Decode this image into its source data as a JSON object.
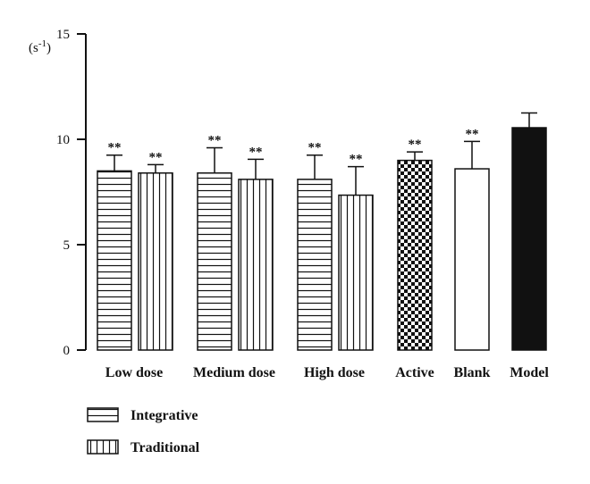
{
  "chart_data": {
    "type": "bar",
    "unit_label": "(s-1)",
    "categories": [
      "Low dose",
      "Medium dose",
      "High dose",
      "Active",
      "Blank",
      "Model"
    ],
    "yticks": [
      "0",
      "5",
      "10",
      "15"
    ],
    "ylim": [
      0,
      15
    ],
    "series": [
      {
        "name": "Integrative",
        "pattern": "horizontal-lines"
      },
      {
        "name": "Traditional",
        "pattern": "vertical-lines"
      }
    ],
    "bars": [
      {
        "category": "Low dose",
        "series": "Integrative",
        "pattern": "horizontal-lines",
        "value": 8.5,
        "error": 0.75,
        "significance": "**"
      },
      {
        "category": "Low dose",
        "series": "Traditional",
        "pattern": "vertical-lines",
        "value": 8.4,
        "error": 0.4,
        "significance": "**"
      },
      {
        "category": "Medium dose",
        "series": "Integrative",
        "pattern": "horizontal-lines",
        "value": 8.4,
        "error": 1.2,
        "significance": "**"
      },
      {
        "category": "Medium dose",
        "series": "Traditional",
        "pattern": "vertical-lines",
        "value": 8.1,
        "error": 0.95,
        "significance": "**"
      },
      {
        "category": "High dose",
        "series": "Integrative",
        "pattern": "horizontal-lines",
        "value": 8.1,
        "error": 1.15,
        "significance": "**"
      },
      {
        "category": "High dose",
        "series": "Traditional",
        "pattern": "vertical-lines",
        "value": 7.35,
        "error": 1.35,
        "significance": "**"
      },
      {
        "category": "Active",
        "pattern": "checkerboard",
        "value": 9.0,
        "error": 0.4,
        "significance": "**"
      },
      {
        "category": "Blank",
        "pattern": "white",
        "value": 8.6,
        "error": 1.3,
        "significance": "**"
      },
      {
        "category": "Model",
        "pattern": "black",
        "value": 10.55,
        "error": 0.7,
        "significance": ""
      }
    ],
    "legend_position": "bottom-left",
    "grid": false
  },
  "colors": {
    "axis": "#111111",
    "bar_edge": "#111111",
    "model_fill": "#111111"
  }
}
